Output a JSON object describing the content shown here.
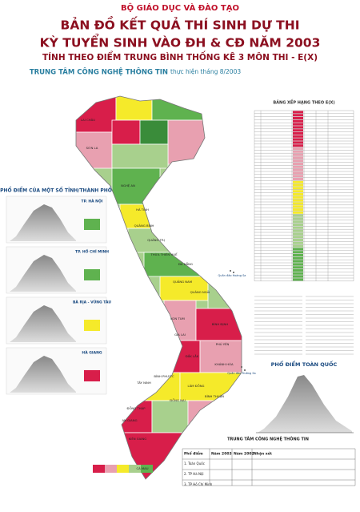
{
  "header": {
    "ministry": "BỘ GIÁO DỤC VÀ ĐÀO TẠO",
    "title_1": "BẢN ĐỒ KẾT QUẢ THÍ SINH DỰ THI",
    "title_2": "KỲ TUYỂN SINH VÀO ĐH & CĐ NĂM 2003",
    "subtitle": "TÍNH THEO ĐIỂM TRUNG BÌNH THỐNG KÊ 3 MÔN THI - E(X)",
    "author": "TRUNG TÂM CÔNG NGHỆ THÔNG TIN",
    "date": "thực hiện tháng 8/2003"
  },
  "left_panel": {
    "title": "PHỔ ĐIỂM CỦA MỘT SỐ TỈNH/THÀNH PHỐ",
    "charts": [
      "TP. HÀ NỘI",
      "TP. HỒ CHÍ MINH",
      "BÀ RỊA - VŨNG TÀU",
      "HÀ GIANG"
    ]
  },
  "ranking_table": {
    "title": "BẢNG XẾP HẠNG THEO E(X)"
  },
  "national_chart": {
    "title": "PHỔ ĐIỂM TOÀN QUỐC"
  },
  "summary": {
    "org": "TRUNG TÂM CÔNG NGHỆ THÔNG TIN",
    "columns": [
      "Phổ điểm",
      "Năm 2003",
      "Năm 2002",
      "Nhận xét"
    ],
    "rows": [
      "1. Toàn Quốc",
      "2. TP Hà Nội",
      "3. TP Hồ Chí Minh"
    ]
  },
  "map": {
    "labels": [
      "LAI CHÂU",
      "SƠN LA",
      "NGHỆ AN",
      "HÀ TĨNH",
      "QUẢNG BÌNH",
      "QUẢNG TRỊ",
      "THỪA THIÊN HUẾ",
      "ĐÀ NẴNG",
      "QUẢNG NAM",
      "QUẢNG NGÃI",
      "KON TUM",
      "GIA LAI",
      "BÌNH ĐỊNH",
      "PHÚ YÊN",
      "ĐẮK LẮK",
      "KHÁNH HÒA",
      "LÂM ĐỒNG",
      "BÌNH THUẬN",
      "BÌNH PHƯỚC",
      "TÂY NINH",
      "ĐỒNG NAI",
      "ĐỒNG THÁP",
      "AN GIANG",
      "KIÊN GIANG",
      "CÀ MAU"
    ],
    "islands": [
      "Quần đảo Hoàng Sa",
      "Quần đảo Trường Sa"
    ]
  }
}
